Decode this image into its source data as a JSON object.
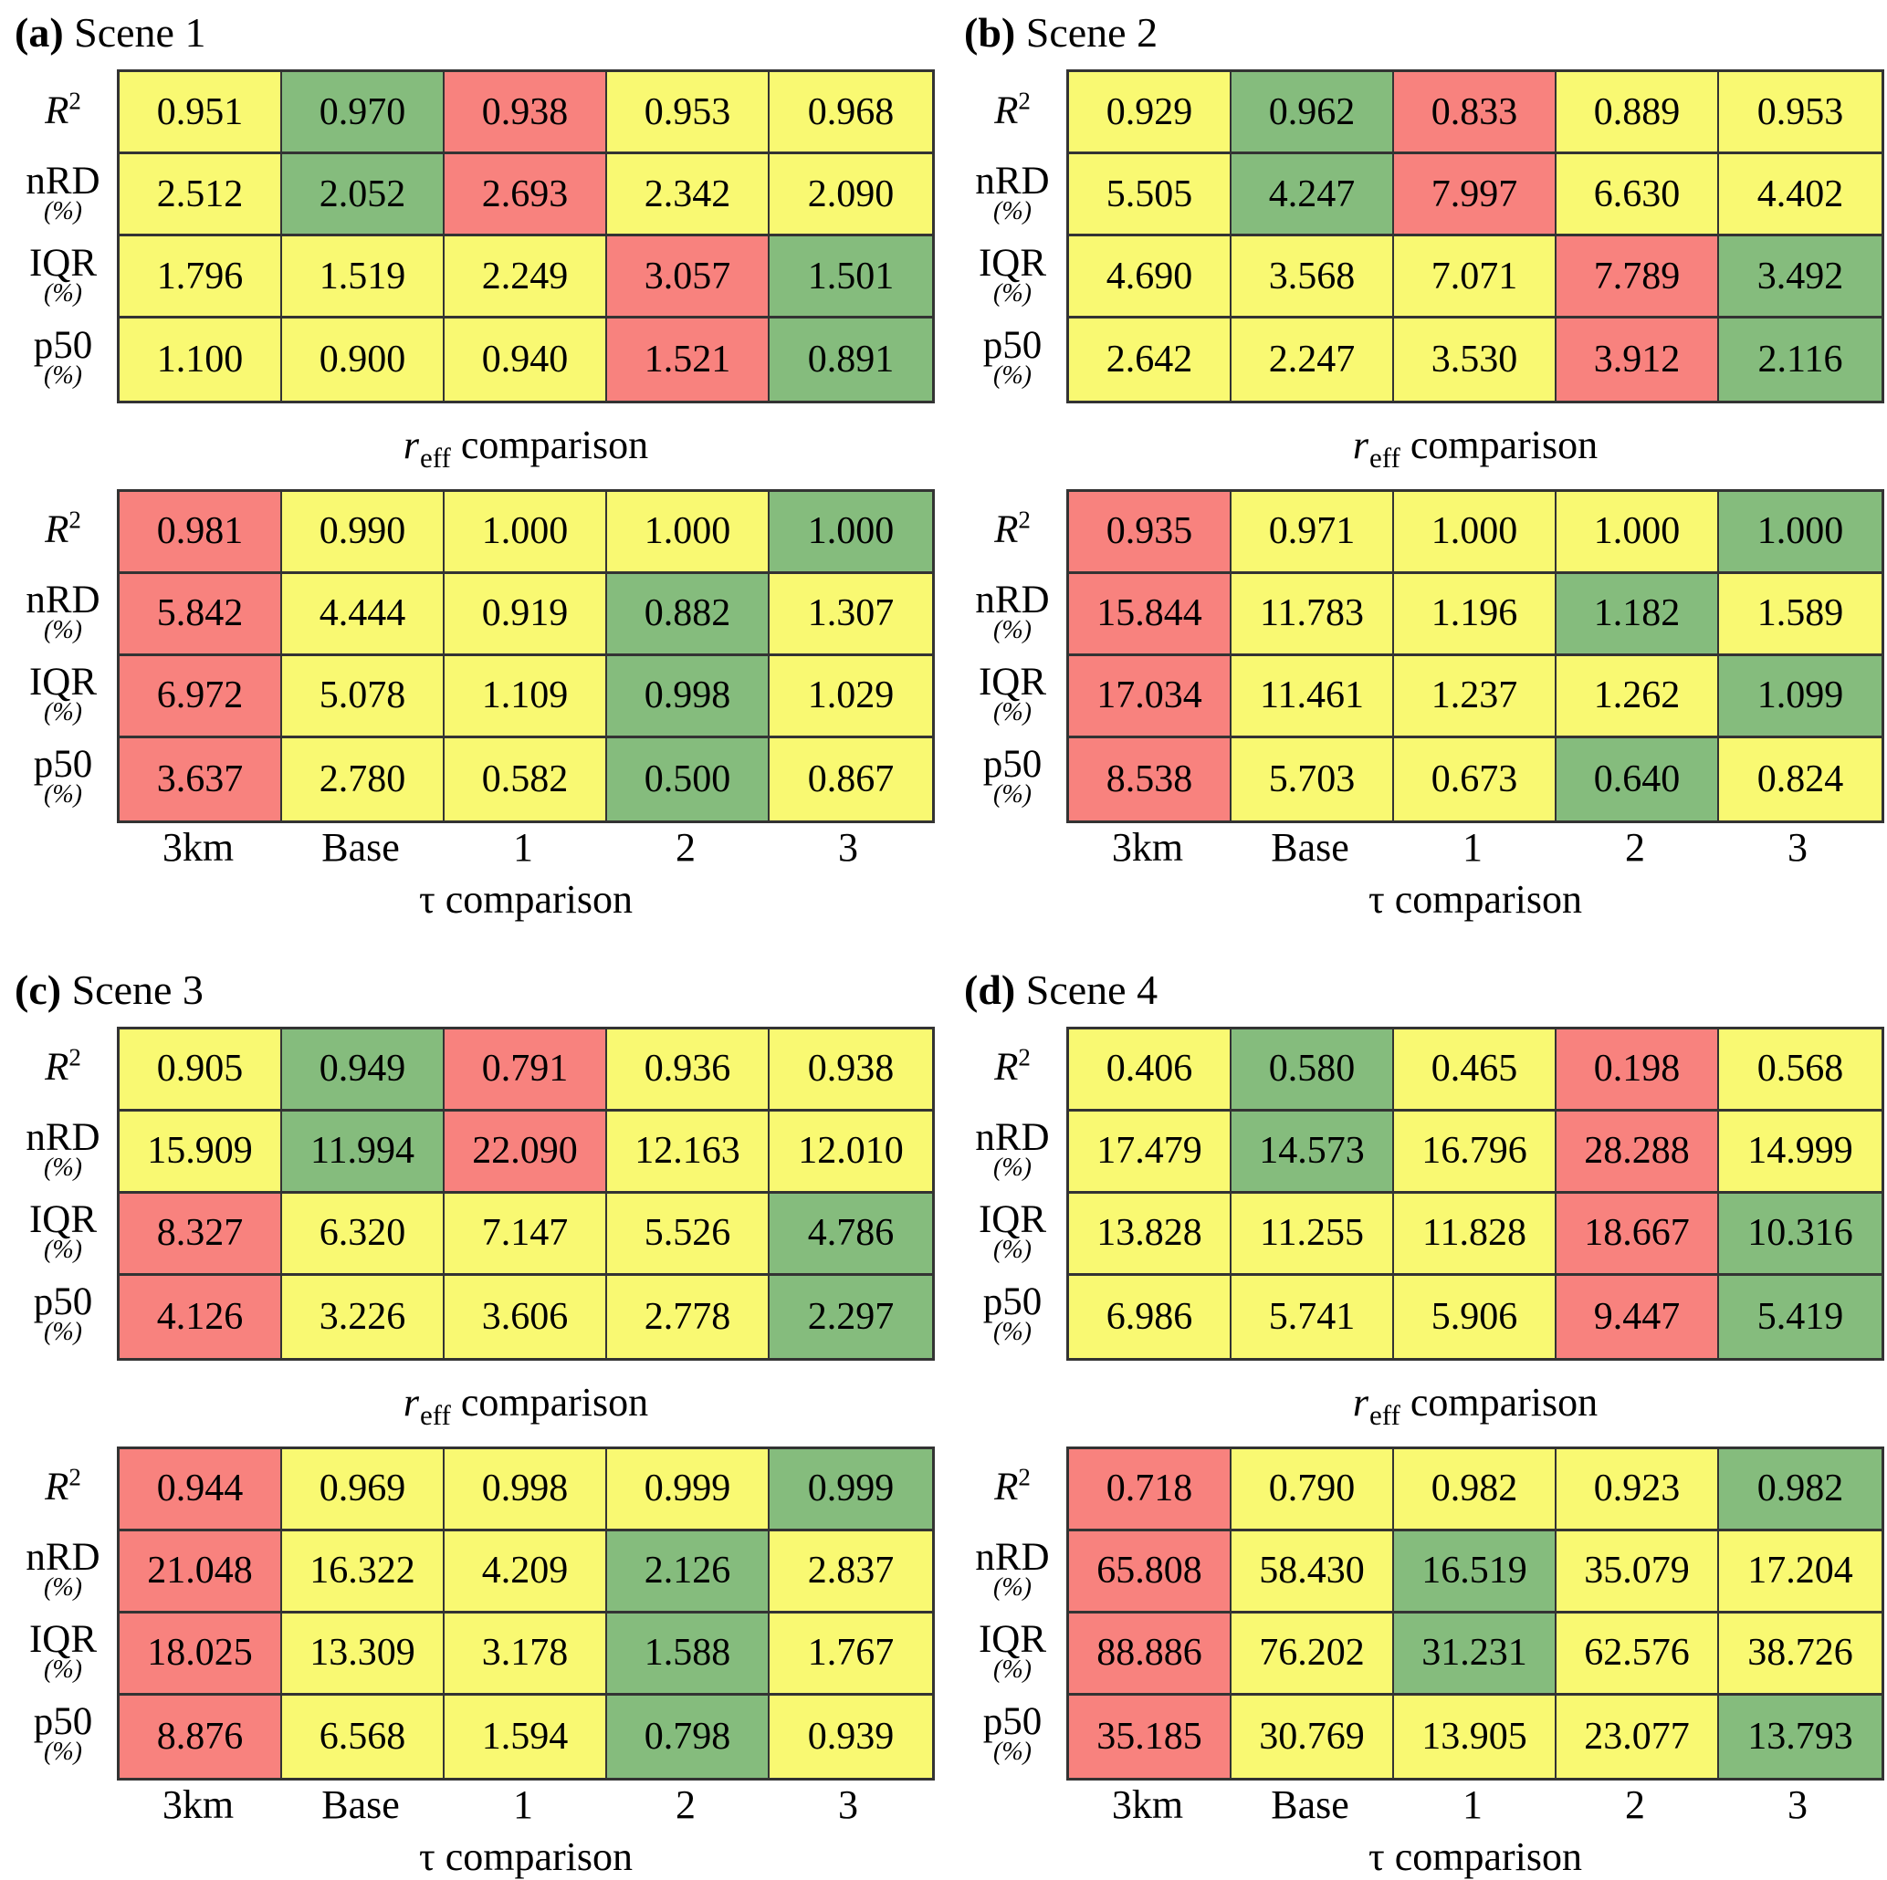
{
  "chart_data": {
    "type": "table",
    "description": "Four scene panels, each with two red-yellow-green colored metric tables (r_eff comparison and tau comparison)",
    "colors": {
      "y": "#f9f972",
      "g": "#85bc7d",
      "r": "#f8827e",
      "border": "#333333"
    },
    "metrics": [
      {
        "name": "R",
        "sup": "2",
        "unit": "",
        "italic": true
      },
      {
        "name": "nRD",
        "sup": "",
        "unit": "(%)",
        "italic": false
      },
      {
        "name": "IQR",
        "sup": "",
        "unit": "(%)",
        "italic": false
      },
      {
        "name": "p50",
        "sup": "",
        "unit": "(%)",
        "italic": false
      }
    ],
    "column_labels": [
      "3km",
      "Base",
      "1",
      "2",
      "3"
    ],
    "caption_reff": {
      "lead": "r",
      "sub": "eff",
      "rest": "comparison"
    },
    "caption_tau": {
      "lead": "τ",
      "rest": "comparison"
    },
    "panels": [
      {
        "label": "(a)",
        "title": "Scene 1",
        "reff": [
          {
            "values": [
              "0.951",
              "0.970",
              "0.938",
              "0.953",
              "0.968"
            ],
            "colors": [
              "y",
              "g",
              "r",
              "y",
              "y"
            ]
          },
          {
            "values": [
              "2.512",
              "2.052",
              "2.693",
              "2.342",
              "2.090"
            ],
            "colors": [
              "y",
              "g",
              "r",
              "y",
              "y"
            ]
          },
          {
            "values": [
              "1.796",
              "1.519",
              "2.249",
              "3.057",
              "1.501"
            ],
            "colors": [
              "y",
              "y",
              "y",
              "r",
              "g"
            ]
          },
          {
            "values": [
              "1.100",
              "0.900",
              "0.940",
              "1.521",
              "0.891"
            ],
            "colors": [
              "y",
              "y",
              "y",
              "r",
              "g"
            ]
          }
        ],
        "tau": [
          {
            "values": [
              "0.981",
              "0.990",
              "1.000",
              "1.000",
              "1.000"
            ],
            "colors": [
              "r",
              "y",
              "y",
              "y",
              "g"
            ]
          },
          {
            "values": [
              "5.842",
              "4.444",
              "0.919",
              "0.882",
              "1.307"
            ],
            "colors": [
              "r",
              "y",
              "y",
              "g",
              "y"
            ]
          },
          {
            "values": [
              "6.972",
              "5.078",
              "1.109",
              "0.998",
              "1.029"
            ],
            "colors": [
              "r",
              "y",
              "y",
              "g",
              "y"
            ]
          },
          {
            "values": [
              "3.637",
              "2.780",
              "0.582",
              "0.500",
              "0.867"
            ],
            "colors": [
              "r",
              "y",
              "y",
              "g",
              "y"
            ]
          }
        ]
      },
      {
        "label": "(b)",
        "title": "Scene 2",
        "reff": [
          {
            "values": [
              "0.929",
              "0.962",
              "0.833",
              "0.889",
              "0.953"
            ],
            "colors": [
              "y",
              "g",
              "r",
              "y",
              "y"
            ]
          },
          {
            "values": [
              "5.505",
              "4.247",
              "7.997",
              "6.630",
              "4.402"
            ],
            "colors": [
              "y",
              "g",
              "r",
              "y",
              "y"
            ]
          },
          {
            "values": [
              "4.690",
              "3.568",
              "7.071",
              "7.789",
              "3.492"
            ],
            "colors": [
              "y",
              "y",
              "y",
              "r",
              "g"
            ]
          },
          {
            "values": [
              "2.642",
              "2.247",
              "3.530",
              "3.912",
              "2.116"
            ],
            "colors": [
              "y",
              "y",
              "y",
              "r",
              "g"
            ]
          }
        ],
        "tau": [
          {
            "values": [
              "0.935",
              "0.971",
              "1.000",
              "1.000",
              "1.000"
            ],
            "colors": [
              "r",
              "y",
              "y",
              "y",
              "g"
            ]
          },
          {
            "values": [
              "15.844",
              "11.783",
              "1.196",
              "1.182",
              "1.589"
            ],
            "colors": [
              "r",
              "y",
              "y",
              "g",
              "y"
            ]
          },
          {
            "values": [
              "17.034",
              "11.461",
              "1.237",
              "1.262",
              "1.099"
            ],
            "colors": [
              "r",
              "y",
              "y",
              "y",
              "g"
            ]
          },
          {
            "values": [
              "8.538",
              "5.703",
              "0.673",
              "0.640",
              "0.824"
            ],
            "colors": [
              "r",
              "y",
              "y",
              "g",
              "y"
            ]
          }
        ]
      },
      {
        "label": "(c)",
        "title": "Scene 3",
        "reff": [
          {
            "values": [
              "0.905",
              "0.949",
              "0.791",
              "0.936",
              "0.938"
            ],
            "colors": [
              "y",
              "g",
              "r",
              "y",
              "y"
            ]
          },
          {
            "values": [
              "15.909",
              "11.994",
              "22.090",
              "12.163",
              "12.010"
            ],
            "colors": [
              "y",
              "g",
              "r",
              "y",
              "y"
            ]
          },
          {
            "values": [
              "8.327",
              "6.320",
              "7.147",
              "5.526",
              "4.786"
            ],
            "colors": [
              "r",
              "y",
              "y",
              "y",
              "g"
            ]
          },
          {
            "values": [
              "4.126",
              "3.226",
              "3.606",
              "2.778",
              "2.297"
            ],
            "colors": [
              "r",
              "y",
              "y",
              "y",
              "g"
            ]
          }
        ],
        "tau": [
          {
            "values": [
              "0.944",
              "0.969",
              "0.998",
              "0.999",
              "0.999"
            ],
            "colors": [
              "r",
              "y",
              "y",
              "y",
              "g"
            ]
          },
          {
            "values": [
              "21.048",
              "16.322",
              "4.209",
              "2.126",
              "2.837"
            ],
            "colors": [
              "r",
              "y",
              "y",
              "g",
              "y"
            ]
          },
          {
            "values": [
              "18.025",
              "13.309",
              "3.178",
              "1.588",
              "1.767"
            ],
            "colors": [
              "r",
              "y",
              "y",
              "g",
              "y"
            ]
          },
          {
            "values": [
              "8.876",
              "6.568",
              "1.594",
              "0.798",
              "0.939"
            ],
            "colors": [
              "r",
              "y",
              "y",
              "g",
              "y"
            ]
          }
        ]
      },
      {
        "label": "(d)",
        "title": "Scene 4",
        "reff": [
          {
            "values": [
              "0.406",
              "0.580",
              "0.465",
              "0.198",
              "0.568"
            ],
            "colors": [
              "y",
              "g",
              "y",
              "r",
              "y"
            ]
          },
          {
            "values": [
              "17.479",
              "14.573",
              "16.796",
              "28.288",
              "14.999"
            ],
            "colors": [
              "y",
              "g",
              "y",
              "r",
              "y"
            ]
          },
          {
            "values": [
              "13.828",
              "11.255",
              "11.828",
              "18.667",
              "10.316"
            ],
            "colors": [
              "y",
              "y",
              "y",
              "r",
              "g"
            ]
          },
          {
            "values": [
              "6.986",
              "5.741",
              "5.906",
              "9.447",
              "5.419"
            ],
            "colors": [
              "y",
              "y",
              "y",
              "r",
              "g"
            ]
          }
        ],
        "tau": [
          {
            "values": [
              "0.718",
              "0.790",
              "0.982",
              "0.923",
              "0.982"
            ],
            "colors": [
              "r",
              "y",
              "y",
              "y",
              "g"
            ]
          },
          {
            "values": [
              "65.808",
              "58.430",
              "16.519",
              "35.079",
              "17.204"
            ],
            "colors": [
              "r",
              "y",
              "g",
              "y",
              "y"
            ]
          },
          {
            "values": [
              "88.886",
              "76.202",
              "31.231",
              "62.576",
              "38.726"
            ],
            "colors": [
              "r",
              "y",
              "g",
              "y",
              "y"
            ]
          },
          {
            "values": [
              "35.185",
              "30.769",
              "13.905",
              "23.077",
              "13.793"
            ],
            "colors": [
              "r",
              "y",
              "y",
              "y",
              "g"
            ]
          }
        ]
      }
    ]
  }
}
